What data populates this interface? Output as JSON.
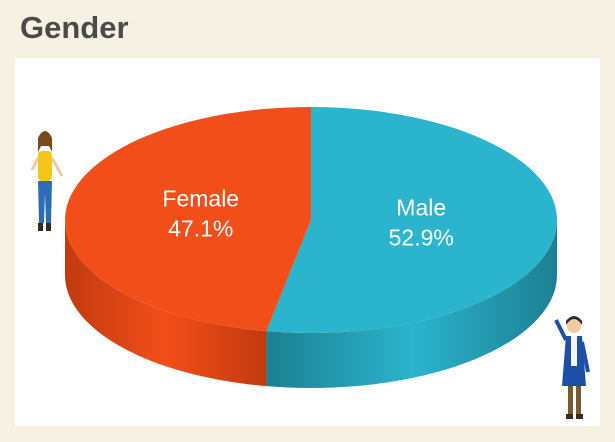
{
  "chart_data": {
    "type": "pie3d",
    "title": "Gender",
    "categories": [
      "Male",
      "Female"
    ],
    "values": [
      52.9,
      47.1
    ],
    "value_labels": [
      "52.9%",
      "47.1%"
    ],
    "colors": [
      "#2bb4cd",
      "#f24e19"
    ],
    "side_colors": [
      "#1d7f93",
      "#c23a10"
    ]
  }
}
